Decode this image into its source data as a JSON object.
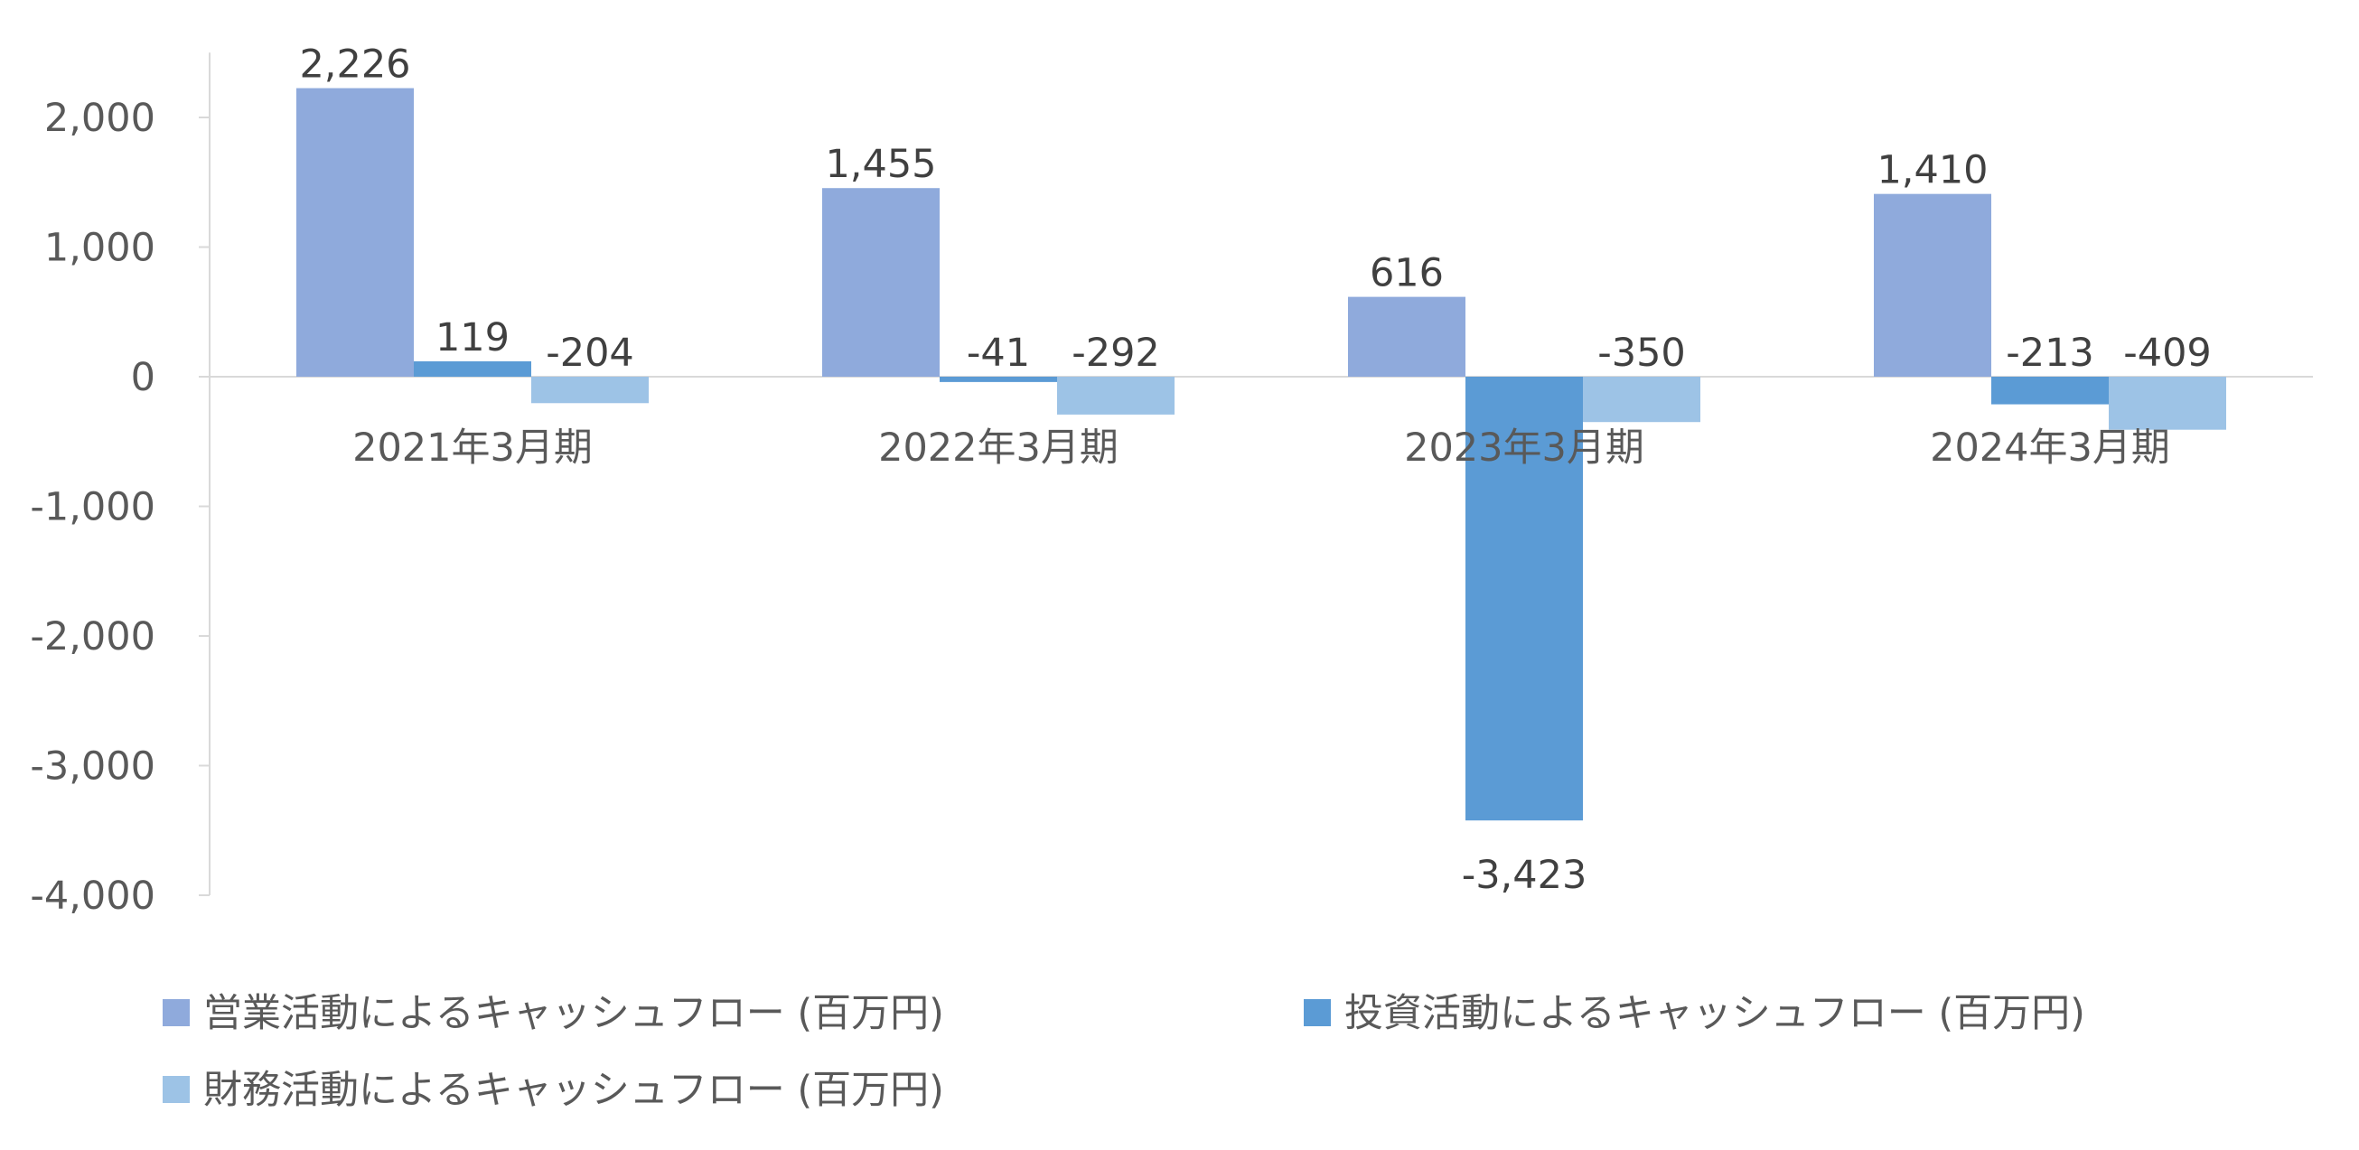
{
  "chart_data": {
    "type": "bar",
    "categories": [
      "2021年3月期",
      "2022年3月期",
      "2023年3月期",
      "2024年3月期"
    ],
    "series": [
      {
        "name": "営業活動によるキャッシュフロー (百万円)",
        "values": [
          2226,
          1455,
          616,
          1410
        ],
        "color": "#8faadc"
      },
      {
        "name": "投資活動によるキャッシュフロー (百万円)",
        "values": [
          119,
          -41,
          -3423,
          -213
        ],
        "color": "#5b9bd5"
      },
      {
        "name": "財務活動によるキャッシュフロー (百万円)",
        "values": [
          -204,
          -292,
          -350,
          -409
        ],
        "color": "#9dc3e6"
      }
    ],
    "data_labels": [
      [
        "2,226",
        "1,455",
        "616",
        "1,410"
      ],
      [
        "119",
        "-41",
        "-3,423",
        "-213"
      ],
      [
        "-204",
        "-292",
        "-350",
        "-409"
      ]
    ],
    "yticks": [
      2000,
      1000,
      0,
      -1000,
      -2000,
      -3000,
      -4000
    ],
    "ytick_labels": [
      "2,000",
      "1,000",
      "0",
      "-1,000",
      "-2,000",
      "-3,000",
      "-4,000"
    ],
    "ylim": [
      -4000,
      2500
    ],
    "grid": false,
    "legend_position": "bottom",
    "axis_color": "#d9d9d9"
  }
}
